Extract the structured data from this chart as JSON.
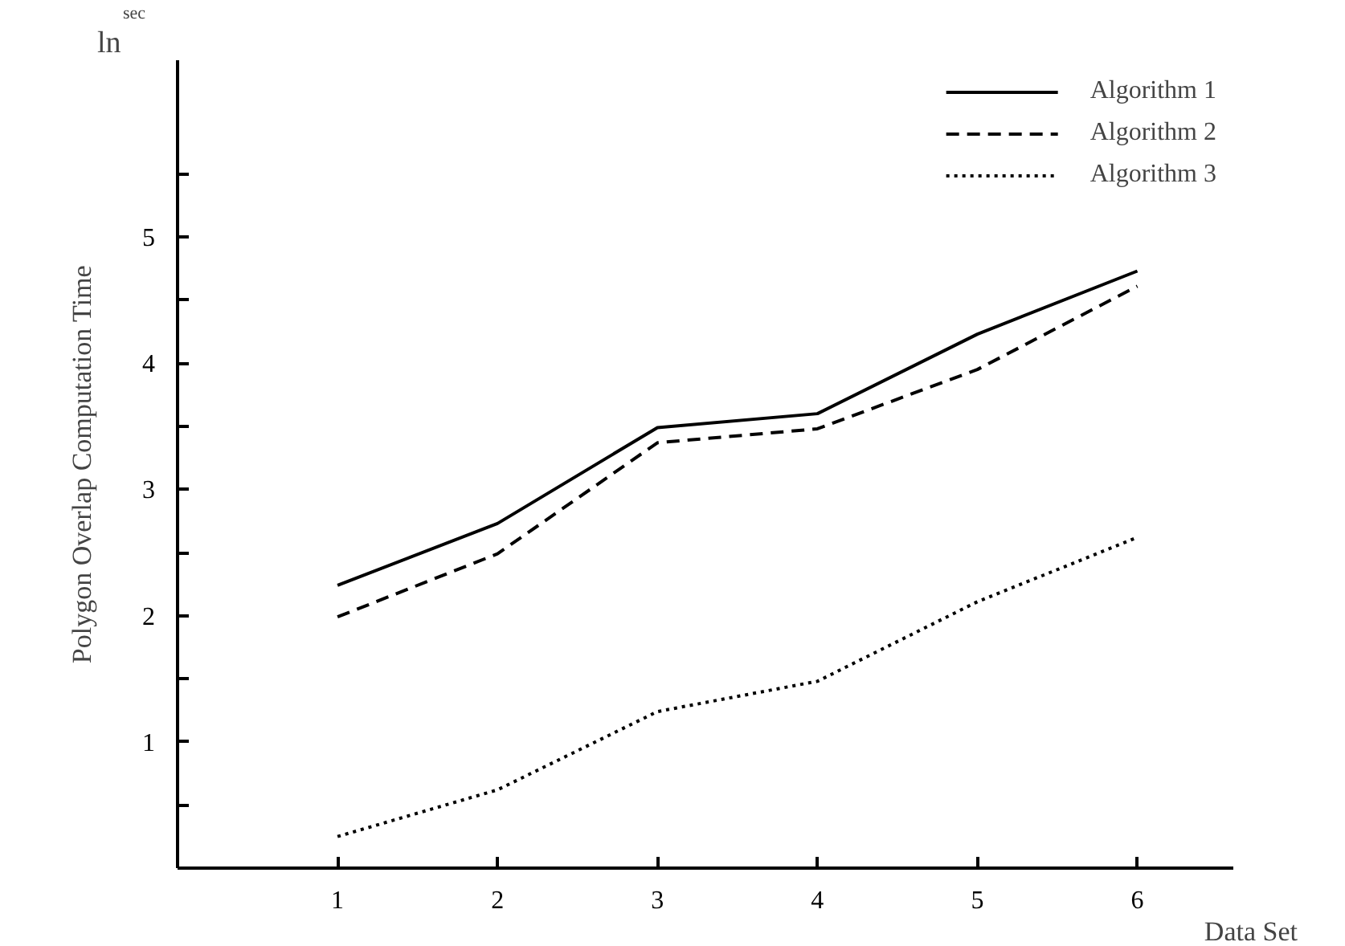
{
  "chart_data": {
    "type": "line",
    "xlabel": "Data Set",
    "ylabel": "Polygon Overlap Computation Time",
    "annotations": [
      "ln$^{sec}$"
    ],
    "x": [
      1,
      2,
      3,
      4,
      5,
      6
    ],
    "series": [
      {
        "name": "Algorithm 1",
        "color": "#000000",
        "line_style": "solid",
        "values": [
          2.24,
          2.73,
          3.49,
          3.6,
          4.23,
          4.73
        ]
      },
      {
        "name": "Algorithm 2",
        "color": "#000000",
        "line_style": "dashed",
        "values": [
          1.99,
          2.49,
          3.37,
          3.48,
          3.95,
          4.61
        ]
      },
      {
        "name": "Algorithm 3",
        "color": "#000000",
        "line_style": "dotted",
        "values": [
          0.25,
          0.62,
          1.24,
          1.48,
          2.11,
          2.62
        ]
      }
    ],
    "xlim": [
      0,
      6.6
    ],
    "ylim": [
      0,
      6.4
    ],
    "xticks": [
      1,
      2,
      3,
      4,
      5,
      6
    ],
    "yticks": [
      {
        "value": 0.5,
        "label": null
      },
      1,
      {
        "value": 1.5,
        "label": null
      },
      2,
      {
        "value": 2.5,
        "label": null
      },
      3,
      {
        "value": 3.5,
        "label": null
      },
      4,
      {
        "value": 4.5,
        "label": null
      },
      5,
      {
        "value": 5.5,
        "label": null
      }
    ],
    "grid": false,
    "legend": "top right",
    "marker": "none"
  }
}
